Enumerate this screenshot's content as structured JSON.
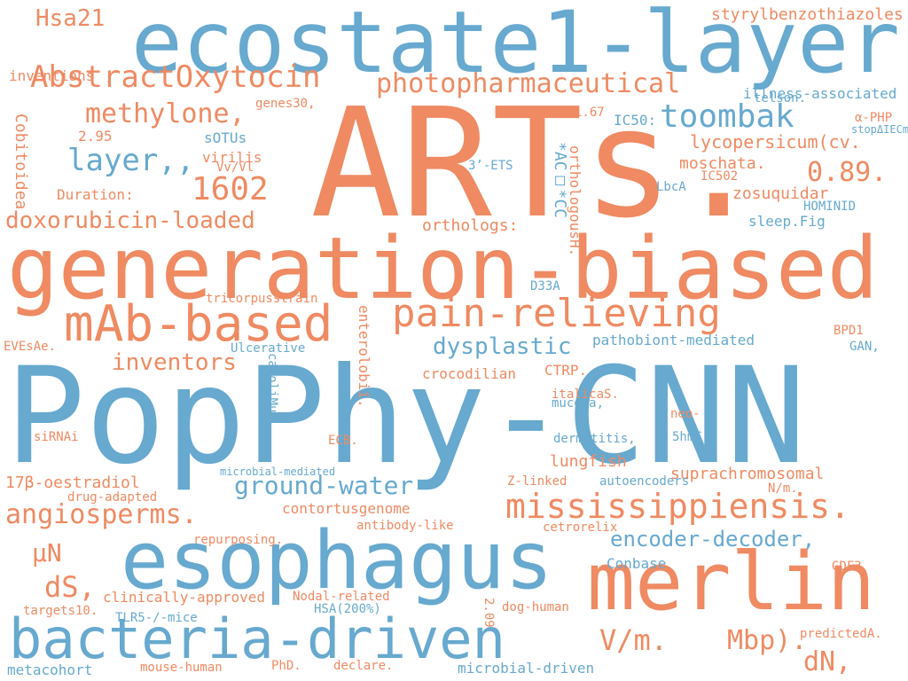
{
  "palette": {
    "blue": "#67a9cf",
    "orange": "#ef8a62"
  },
  "words": [
    {
      "text": "PopPhy-CNN",
      "color": "blue"
    },
    {
      "text": "ARTs.",
      "color": "orange"
    },
    {
      "text": "generation-biased",
      "color": "orange"
    },
    {
      "text": "ecostate1-layer",
      "color": "blue"
    },
    {
      "text": "esophagus",
      "color": "blue"
    },
    {
      "text": "merlin",
      "color": "orange"
    },
    {
      "text": "bacteria-driven",
      "color": "blue"
    },
    {
      "text": "pain-relieving",
      "color": "orange"
    },
    {
      "text": "mAb-based",
      "color": "orange"
    },
    {
      "text": "AbstractOxytocin",
      "color": "orange"
    },
    {
      "text": "mississippiensis.",
      "color": "orange"
    },
    {
      "text": "photopharmaceutical",
      "color": "orange"
    },
    {
      "text": "toombak",
      "color": "blue"
    },
    {
      "text": "methylone,",
      "color": "orange"
    },
    {
      "text": "layer,,",
      "color": "blue"
    },
    {
      "text": "1602",
      "color": "orange"
    },
    {
      "text": "0.89.",
      "color": "orange"
    },
    {
      "text": "doxorubicin-loaded",
      "color": "orange"
    },
    {
      "text": "angiosperms.",
      "color": "orange"
    },
    {
      "text": "ground-water",
      "color": "blue"
    },
    {
      "text": "encoder-decoder,",
      "color": "blue"
    },
    {
      "text": "dysplastic",
      "color": "blue"
    },
    {
      "text": "inventors",
      "color": "orange"
    },
    {
      "text": "Hsa21",
      "color": "orange"
    },
    {
      "text": "dS,",
      "color": "orange"
    },
    {
      "text": "µN",
      "color": "orange"
    },
    {
      "text": "V/m.",
      "color": "orange"
    },
    {
      "text": "Mbp).",
      "color": "orange"
    },
    {
      "text": "dN,",
      "color": "orange"
    },
    {
      "text": "styrylbenzothiazoles",
      "color": "orange"
    },
    {
      "text": "lycopersicum(cv.",
      "color": "orange"
    },
    {
      "text": "illness-associated",
      "color": "blue"
    },
    {
      "text": "telson.",
      "color": "blue"
    },
    {
      "text": "α-PHP",
      "color": "orange"
    },
    {
      "text": "stopΔIECmice",
      "color": "blue"
    },
    {
      "text": "moschata.",
      "color": "orange"
    },
    {
      "text": "zosuquidar",
      "color": "orange"
    },
    {
      "text": "LbcA",
      "color": "blue"
    },
    {
      "text": "IC502",
      "color": "orange"
    },
    {
      "text": "HOMINID",
      "color": "blue"
    },
    {
      "text": "sleep.Fig",
      "color": "blue"
    },
    {
      "text": "orthologs:",
      "color": "orange"
    },
    {
      "text": "3’-ETS",
      "color": "blue"
    },
    {
      "text": "*AC□*CC",
      "color": "blue"
    },
    {
      "text": "inventions",
      "color": "orange"
    },
    {
      "text": "2.95",
      "color": "orange"
    },
    {
      "text": "genes30,",
      "color": "orange"
    },
    {
      "text": "sOTUs",
      "color": "blue"
    },
    {
      "text": "virilis",
      "color": "orange"
    },
    {
      "text": "Vv/Vl",
      "color": "orange"
    },
    {
      "text": "Duration:",
      "color": "orange"
    },
    {
      "text": "IC50:",
      "color": "blue"
    },
    {
      "text": "1.67",
      "color": "orange"
    },
    {
      "text": "pathobiont-mediated",
      "color": "blue"
    },
    {
      "text": "CTRP.",
      "color": "orange"
    },
    {
      "text": "crocodilian",
      "color": "orange"
    },
    {
      "text": "tricorpusstrain",
      "color": "orange"
    },
    {
      "text": "Ulcerative",
      "color": "blue"
    },
    {
      "text": "EVEsAe.",
      "color": "orange"
    },
    {
      "text": "BPD1",
      "color": "orange"
    },
    {
      "text": "GAN,",
      "color": "blue"
    },
    {
      "text": "D33A",
      "color": "blue"
    },
    {
      "text": "italicaS.",
      "color": "orange"
    },
    {
      "text": "mucosa,",
      "color": "blue"
    },
    {
      "text": "dermatitis,",
      "color": "blue"
    },
    {
      "text": "5hmC,",
      "color": "blue"
    },
    {
      "text": "neo-",
      "color": "orange"
    },
    {
      "text": "lungfish",
      "color": "orange"
    },
    {
      "text": "suprachromosomal",
      "color": "orange"
    },
    {
      "text": "autoencoders",
      "color": "blue"
    },
    {
      "text": "N/m.",
      "color": "orange"
    },
    {
      "text": "17β-oestradiol",
      "color": "orange"
    },
    {
      "text": "siRNAi",
      "color": "orange"
    },
    {
      "text": "contortusgenome",
      "color": "orange"
    },
    {
      "text": "Z-linked",
      "color": "orange"
    },
    {
      "text": "drug-adapted",
      "color": "orange"
    },
    {
      "text": "antibody-like",
      "color": "orange"
    },
    {
      "text": "cetrorelix",
      "color": "orange"
    },
    {
      "text": "repurposing.",
      "color": "orange"
    },
    {
      "text": "Conbase",
      "color": "blue"
    },
    {
      "text": "GDF3",
      "color": "orange"
    },
    {
      "text": "clinically-approved",
      "color": "orange"
    },
    {
      "text": "Nodal-related",
      "color": "orange"
    },
    {
      "text": "HSA(200%)",
      "color": "blue"
    },
    {
      "text": "targets10.",
      "color": "orange"
    },
    {
      "text": "TLR5-/-mice",
      "color": "blue"
    },
    {
      "text": "dog-human",
      "color": "orange"
    },
    {
      "text": "predictedA.",
      "color": "orange"
    },
    {
      "text": "metacohort",
      "color": "blue"
    },
    {
      "text": "mouse-human",
      "color": "orange"
    },
    {
      "text": "PhD.",
      "color": "orange"
    },
    {
      "text": "declare.",
      "color": "orange"
    },
    {
      "text": "microbial-driven",
      "color": "blue"
    },
    {
      "text": "ECB.",
      "color": "orange"
    },
    {
      "text": "microbial-mediated",
      "color": "blue"
    },
    {
      "text": "enterolobii.",
      "color": "orange"
    },
    {
      "text": "caroliMus",
      "color": "blue"
    },
    {
      "text": "Cobitoidea",
      "color": "orange"
    },
    {
      "text": "2.09",
      "color": "orange"
    },
    {
      "text": "orthologousH.",
      "color": "orange"
    }
  ]
}
